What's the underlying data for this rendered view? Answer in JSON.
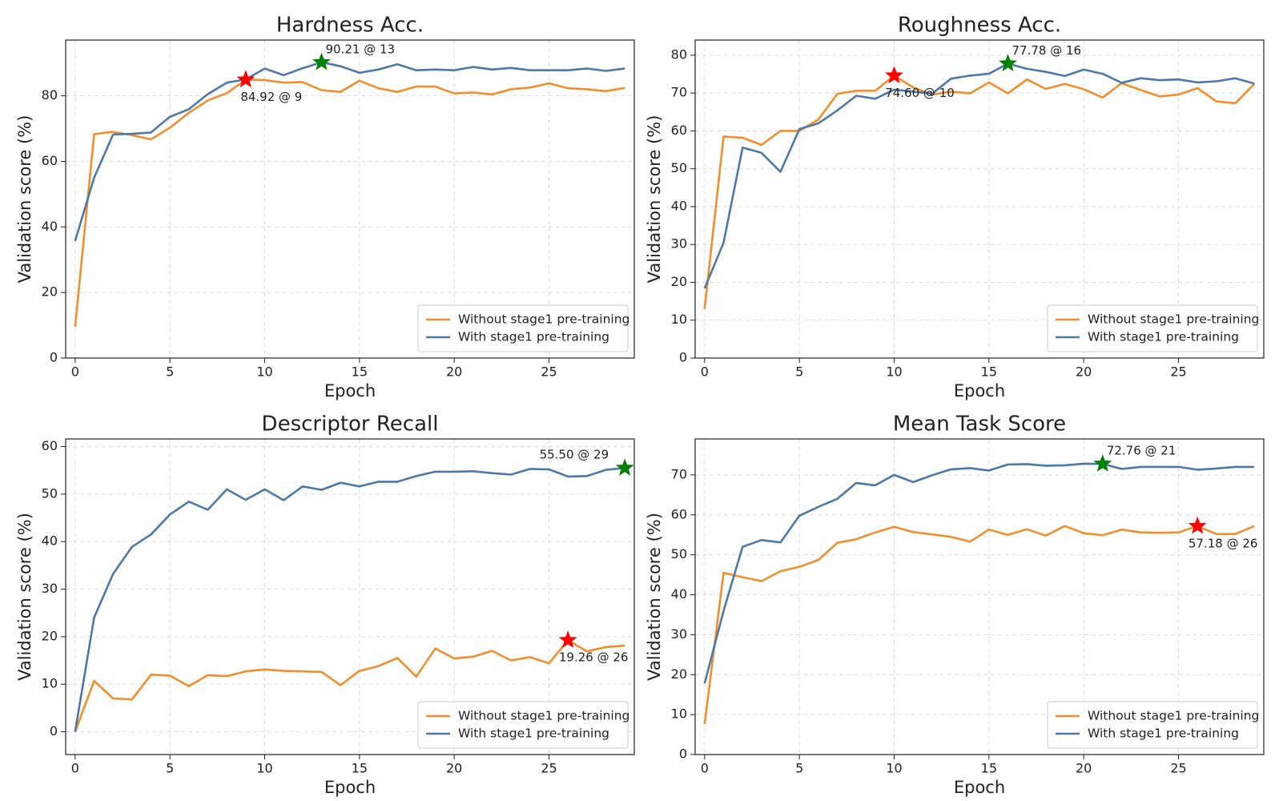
{
  "chart_data": [
    {
      "type": "line",
      "title": "Hardness Acc.",
      "xlabel": "Epoch",
      "ylabel": "Validation score (%)",
      "x": [
        0,
        1,
        2,
        3,
        4,
        5,
        6,
        7,
        8,
        9,
        10,
        11,
        12,
        13,
        14,
        15,
        16,
        17,
        18,
        19,
        20,
        21,
        22,
        23,
        24,
        25,
        26,
        27,
        28,
        29
      ],
      "xlim": [
        -0.5,
        29.5
      ],
      "ylim": [
        0,
        97
      ],
      "xticks": [
        0,
        5,
        10,
        15,
        20,
        25
      ],
      "yticks": [
        0,
        20,
        40,
        60,
        80
      ],
      "grid": true,
      "legend": "lower right",
      "series": [
        {
          "name": "Without stage1 pre-training",
          "color": "#f28e2b",
          "values": [
            9.5,
            68.3,
            69,
            68,
            66.7,
            70.3,
            74.8,
            78.6,
            80.8,
            84.92,
            84.8,
            84,
            84.2,
            81.7,
            81.2,
            84.6,
            82.3,
            81.2,
            82.8,
            82.8,
            80.7,
            81,
            80.4,
            82,
            82.5,
            83.8,
            82.3,
            82,
            81.4,
            82.4
          ]
        },
        {
          "name": "With stage1 pre-training",
          "color": "#4e79a7",
          "values": [
            35.7,
            55,
            68.2,
            68.4,
            68.8,
            73.6,
            75.9,
            80.5,
            84,
            85,
            88.3,
            86.3,
            88.4,
            90.21,
            89,
            87,
            88,
            89.6,
            87.8,
            88,
            87.8,
            88.8,
            88,
            88.5,
            87.8,
            87.8,
            87.8,
            88.3,
            87.6,
            88.3
          ]
        }
      ],
      "annotations": [
        {
          "text": "84.92 @ 9",
          "x": 9,
          "y": 84.92,
          "color": "#ff0000"
        },
        {
          "text": "90.21 @ 13",
          "x": 13,
          "y": 90.21,
          "color": "#008000"
        }
      ]
    },
    {
      "type": "line",
      "title": "Roughness Acc.",
      "xlabel": "Epoch",
      "ylabel": "Validation score (%)",
      "x": [
        0,
        1,
        2,
        3,
        4,
        5,
        6,
        7,
        8,
        9,
        10,
        11,
        12,
        13,
        14,
        15,
        16,
        17,
        18,
        19,
        20,
        21,
        22,
        23,
        24,
        25,
        26,
        27,
        28,
        29
      ],
      "xlim": [
        -0.5,
        29.5
      ],
      "ylim": [
        0,
        84
      ],
      "xticks": [
        0,
        5,
        10,
        15,
        20,
        25
      ],
      "yticks": [
        0,
        10,
        20,
        30,
        40,
        50,
        60,
        70,
        80
      ],
      "grid": true,
      "legend": "lower right",
      "series": [
        {
          "name": "Without stage1 pre-training",
          "color": "#f28e2b",
          "values": [
            13,
            58.5,
            58.2,
            56.3,
            60,
            60,
            63,
            69.8,
            70.6,
            70.6,
            74.6,
            71.5,
            69.6,
            70.4,
            69.9,
            72.8,
            69.9,
            73.6,
            71.1,
            72.4,
            71,
            68.8,
            72.6,
            70.8,
            69.1,
            69.6,
            71.3,
            67.8,
            67.3,
            72.4
          ]
        },
        {
          "name": "With stage1 pre-training",
          "color": "#4e79a7",
          "values": [
            18.4,
            30.5,
            55.6,
            54.2,
            49.2,
            60.5,
            62,
            65.4,
            69.3,
            68.5,
            70.9,
            70.4,
            69.8,
            73.8,
            74.6,
            75.1,
            77.78,
            76.4,
            75.6,
            74.5,
            76.2,
            75.1,
            72.7,
            73.9,
            73.4,
            73.6,
            72.8,
            73.1,
            73.9,
            72.5
          ]
        }
      ],
      "annotations": [
        {
          "text": "74.60 @ 10",
          "x": 10,
          "y": 74.6,
          "color": "#ff0000"
        },
        {
          "text": "77.78 @ 16",
          "x": 16,
          "y": 77.78,
          "color": "#008000"
        }
      ]
    },
    {
      "type": "line",
      "title": "Descriptor Recall",
      "xlabel": "Epoch",
      "ylabel": "Validation score (%)",
      "x": [
        0,
        1,
        2,
        3,
        4,
        5,
        6,
        7,
        8,
        9,
        10,
        11,
        12,
        13,
        14,
        15,
        16,
        17,
        18,
        19,
        20,
        21,
        22,
        23,
        24,
        25,
        26,
        27,
        28,
        29
      ],
      "xlim": [
        -0.5,
        29.5
      ],
      "ylim": [
        -4.8,
        61.6
      ],
      "xticks": [
        0,
        5,
        10,
        15,
        20,
        25
      ],
      "yticks": [
        0,
        10,
        20,
        30,
        40,
        50,
        60
      ],
      "grid": true,
      "legend": "lower right",
      "series": [
        {
          "name": "Without stage1 pre-training",
          "color": "#f28e2b",
          "values": [
            0,
            10.7,
            7,
            6.8,
            12,
            11.8,
            9.6,
            11.9,
            11.7,
            12.7,
            13.1,
            12.8,
            12.7,
            12.6,
            9.8,
            12.8,
            13.8,
            15.5,
            11.6,
            17.5,
            15.4,
            15.8,
            17,
            15,
            15.7,
            14.4,
            19.26,
            16.9,
            17.8,
            18.1
          ]
        },
        {
          "name": "With stage1 pre-training",
          "color": "#4e79a7",
          "values": [
            0,
            24,
            33.2,
            38.9,
            41.5,
            45.7,
            48.4,
            46.7,
            51,
            48.8,
            51,
            48.7,
            51.6,
            50.9,
            52.4,
            51.6,
            52.6,
            52.6,
            53.8,
            54.7,
            54.7,
            54.8,
            54.4,
            54.1,
            55.3,
            55.2,
            53.7,
            53.8,
            55.1,
            55.5
          ]
        }
      ],
      "annotations": [
        {
          "text": "19.26 @ 26",
          "x": 26,
          "y": 19.26,
          "color": "#ff0000"
        },
        {
          "text": "55.50 @ 29",
          "x": 29,
          "y": 55.5,
          "color": "#008000"
        }
      ]
    },
    {
      "type": "line",
      "title": "Mean Task Score",
      "xlabel": "Epoch",
      "ylabel": "Validation score (%)",
      "x": [
        0,
        1,
        2,
        3,
        4,
        5,
        6,
        7,
        8,
        9,
        10,
        11,
        12,
        13,
        14,
        15,
        16,
        17,
        18,
        19,
        20,
        21,
        22,
        23,
        24,
        25,
        26,
        27,
        28,
        29
      ],
      "xlim": [
        -0.5,
        29.5
      ],
      "ylim": [
        0,
        79
      ],
      "xticks": [
        0,
        5,
        10,
        15,
        20,
        25
      ],
      "yticks": [
        0,
        10,
        20,
        30,
        40,
        50,
        60,
        70
      ],
      "grid": true,
      "legend": "lower right",
      "series": [
        {
          "name": "Without stage1 pre-training",
          "color": "#f28e2b",
          "values": [
            7.6,
            45.5,
            44.4,
            43.4,
            45.9,
            47,
            48.7,
            53,
            53.9,
            55.6,
            57,
            55.7,
            55.1,
            54.5,
            53.3,
            56.3,
            55,
            56.4,
            54.8,
            57.2,
            55.4,
            54.9,
            56.3,
            55.6,
            55.5,
            55.6,
            57.18,
            55.2,
            55.2,
            57.2
          ]
        },
        {
          "name": "With stage1 pre-training",
          "color": "#4e79a7",
          "values": [
            17.8,
            36,
            52,
            53.7,
            53.1,
            59.8,
            62,
            64,
            68,
            67.4,
            70,
            68.2,
            69.9,
            71.4,
            71.7,
            71.1,
            72.6,
            72.7,
            72.3,
            72.4,
            72.8,
            72.76,
            71.5,
            72,
            72,
            72,
            71.3,
            71.6,
            72,
            72
          ]
        }
      ],
      "annotations": [
        {
          "text": "57.18 @ 26",
          "x": 26,
          "y": 57.18,
          "color": "#ff0000"
        },
        {
          "text": "72.76 @ 21",
          "x": 21,
          "y": 72.76,
          "color": "#008000"
        }
      ]
    }
  ]
}
